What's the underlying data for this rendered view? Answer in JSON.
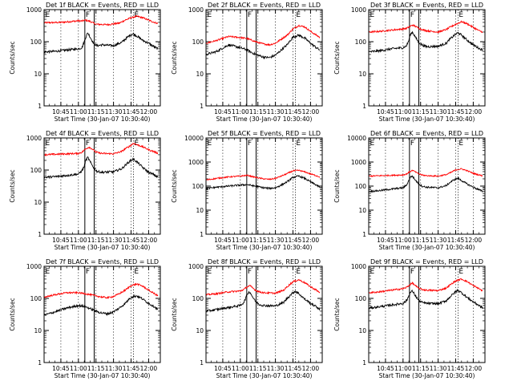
{
  "chart_data": {
    "type": "line",
    "ylabel": "Counts/sec",
    "xlabel": "Start Time (30-Jan-07 10:30:40)",
    "x_tick_labels": [
      "10:45",
      "11:00",
      "11:15",
      "11:30",
      "11:45",
      "12:00"
    ],
    "x_tick_minutes": [
      45,
      60,
      75,
      90,
      105,
      120
    ],
    "x_range_minutes": [
      30.67,
      130
    ],
    "y_scale": "log",
    "colors": {
      "events": "#000000",
      "lld": "#ff0000"
    },
    "panels": [
      {
        "title": "Det 1f BLACK = Events, RED = LLD",
        "ylim": [
          1,
          1000
        ],
        "y_tick_labels": [
          "1",
          "10",
          "100",
          "1000"
        ],
        "markers": [
          {
            "label": "E",
            "x": 31,
            "line": "none"
          },
          {
            "label": "F",
            "x": 65.5,
            "line": "solid"
          },
          {
            "label": "",
            "x": 73.5,
            "line": "solid"
          },
          {
            "label": "E",
            "x": 107,
            "line": "dotted"
          }
        ],
        "lld": {
          "x": [
            31,
            45,
            55,
            60,
            63,
            66,
            70,
            75,
            85,
            95,
            100,
            105,
            110,
            115,
            120,
            125,
            128
          ],
          "y": [
            390,
            400,
            430,
            450,
            440,
            470,
            430,
            350,
            340,
            380,
            470,
            560,
            620,
            560,
            470,
            400,
            370
          ]
        },
        "events": {
          "x": [
            31,
            40,
            50,
            60,
            63,
            65,
            66,
            68,
            70,
            73,
            76,
            80,
            90,
            97,
            100,
            104,
            107,
            110,
            115,
            120,
            125,
            128
          ],
          "y": [
            48,
            50,
            55,
            60,
            65,
            100,
            130,
            190,
            140,
            90,
            75,
            80,
            75,
            95,
            120,
            160,
            175,
            150,
            110,
            90,
            68,
            60
          ]
        }
      },
      {
        "title": "Det 2f BLACK = Events, RED = LLD",
        "ylim": [
          1,
          1000
        ],
        "y_tick_labels": [
          "1",
          "10",
          "100",
          "1000"
        ],
        "markers": [
          {
            "label": "E",
            "x": 31,
            "line": "none"
          },
          {
            "label": "F",
            "x": 65.5,
            "line": "solid"
          },
          {
            "label": "",
            "x": 73.5,
            "line": "solid"
          },
          {
            "label": "E",
            "x": 107,
            "line": "dotted"
          }
        ],
        "lld": {
          "x": [
            31,
            40,
            50,
            60,
            66,
            70,
            75,
            80,
            85,
            90,
            95,
            100,
            105,
            110,
            115,
            120,
            125,
            128
          ],
          "y": [
            90,
            110,
            145,
            135,
            125,
            110,
            95,
            85,
            80,
            90,
            120,
            160,
            250,
            320,
            290,
            210,
            160,
            135
          ]
        },
        "events": {
          "x": [
            31,
            40,
            50,
            60,
            66,
            70,
            75,
            80,
            85,
            90,
            95,
            100,
            105,
            110,
            115,
            120,
            125,
            128
          ],
          "y": [
            40,
            50,
            80,
            65,
            55,
            45,
            38,
            33,
            32,
            38,
            55,
            80,
            140,
            160,
            130,
            90,
            65,
            55
          ]
        }
      },
      {
        "title": "Det 3f BLACK = Events, RED = LLD",
        "ylim": [
          1,
          1000
        ],
        "y_tick_labels": [
          "1",
          "10",
          "100",
          "1000"
        ],
        "markers": [
          {
            "label": "E",
            "x": 31,
            "line": "none"
          },
          {
            "label": "F",
            "x": 65.5,
            "line": "solid"
          },
          {
            "label": "",
            "x": 73.5,
            "line": "solid"
          },
          {
            "label": "E",
            "x": 107,
            "line": "dotted"
          }
        ],
        "lld": {
          "x": [
            31,
            40,
            50,
            60,
            63,
            66,
            68,
            70,
            73,
            76,
            80,
            90,
            97,
            100,
            105,
            110,
            115,
            120,
            125,
            128
          ],
          "y": [
            200,
            210,
            230,
            250,
            260,
            300,
            330,
            310,
            270,
            240,
            220,
            200,
            240,
            280,
            350,
            420,
            360,
            280,
            220,
            200
          ]
        },
        "events": {
          "x": [
            31,
            40,
            50,
            60,
            63,
            65,
            66,
            68,
            70,
            73,
            76,
            80,
            90,
            97,
            100,
            104,
            107,
            110,
            115,
            120,
            125,
            128
          ],
          "y": [
            48,
            52,
            60,
            65,
            75,
            110,
            160,
            200,
            150,
            100,
            80,
            70,
            72,
            90,
            120,
            160,
            190,
            160,
            110,
            80,
            62,
            55
          ]
        }
      },
      {
        "title": "Det 4f BLACK = Events, RED = LLD",
        "ylim": [
          1,
          1000
        ],
        "y_tick_labels": [
          "1",
          "10",
          "100",
          "1000"
        ],
        "markers": [
          {
            "label": "E",
            "x": 31,
            "line": "none"
          },
          {
            "label": "F",
            "x": 65.5,
            "line": "solid"
          },
          {
            "label": "",
            "x": 73.5,
            "line": "solid"
          },
          {
            "label": "E",
            "x": 107,
            "line": "dotted"
          }
        ],
        "lld": {
          "x": [
            31,
            40,
            50,
            60,
            63,
            66,
            69,
            72,
            75,
            80,
            90,
            97,
            100,
            104,
            107,
            110,
            115,
            120,
            125,
            128
          ],
          "y": [
            300,
            310,
            320,
            330,
            360,
            450,
            520,
            450,
            360,
            330,
            320,
            380,
            460,
            560,
            680,
            620,
            530,
            430,
            370,
            330
          ]
        },
        "events": {
          "x": [
            31,
            40,
            50,
            60,
            63,
            65,
            66,
            68,
            70,
            73,
            76,
            80,
            90,
            97,
            100,
            104,
            107,
            110,
            115,
            120,
            125,
            128
          ],
          "y": [
            60,
            62,
            68,
            75,
            95,
            130,
            190,
            250,
            180,
            120,
            90,
            85,
            88,
            110,
            140,
            190,
            220,
            180,
            120,
            85,
            70,
            60
          ]
        }
      },
      {
        "title": "Det 5f BLACK = Events, RED = LLD",
        "ylim": [
          1,
          10000
        ],
        "y_tick_labels": [
          "1",
          "10",
          "100",
          "1000",
          "10000"
        ],
        "markers": [
          {
            "label": "E",
            "x": 31,
            "line": "none"
          },
          {
            "label": "F",
            "x": 65.5,
            "line": "solid"
          },
          {
            "label": "",
            "x": 73.5,
            "line": "solid"
          },
          {
            "label": "E",
            "x": 107,
            "line": "dotted"
          }
        ],
        "lld": {
          "x": [
            31,
            40,
            50,
            60,
            66,
            70,
            75,
            80,
            85,
            90,
            95,
            100,
            105,
            110,
            115,
            120,
            125,
            128
          ],
          "y": [
            180,
            210,
            240,
            260,
            280,
            250,
            220,
            200,
            190,
            210,
            260,
            330,
            430,
            450,
            390,
            320,
            270,
            240
          ]
        },
        "events": {
          "x": [
            31,
            40,
            50,
            60,
            66,
            70,
            75,
            80,
            85,
            90,
            95,
            100,
            105,
            110,
            115,
            120,
            125,
            128
          ],
          "y": [
            80,
            90,
            100,
            110,
            115,
            105,
            95,
            85,
            80,
            85,
            110,
            150,
            230,
            260,
            210,
            150,
            110,
            90
          ]
        }
      },
      {
        "title": "Det 6f BLACK = Events, RED = LLD",
        "ylim": [
          1,
          10000
        ],
        "y_tick_labels": [
          "1",
          "10",
          "100",
          "1000",
          "10000"
        ],
        "markers": [
          {
            "label": "E",
            "x": 31,
            "line": "none"
          },
          {
            "label": "F",
            "x": 65.5,
            "line": "solid"
          },
          {
            "label": "",
            "x": 73.5,
            "line": "solid"
          },
          {
            "label": "E",
            "x": 107,
            "line": "dotted"
          }
        ],
        "lld": {
          "x": [
            31,
            40,
            50,
            60,
            63,
            66,
            68,
            70,
            73,
            76,
            80,
            90,
            97,
            100,
            105,
            110,
            115,
            120,
            125,
            128
          ],
          "y": [
            260,
            270,
            280,
            290,
            320,
            400,
            450,
            400,
            330,
            290,
            270,
            260,
            300,
            350,
            470,
            520,
            430,
            340,
            290,
            270
          ]
        },
        "events": {
          "x": [
            31,
            40,
            50,
            60,
            63,
            65,
            66,
            68,
            70,
            73,
            76,
            80,
            90,
            97,
            100,
            104,
            107,
            110,
            115,
            120,
            125,
            128
          ],
          "y": [
            60,
            65,
            75,
            85,
            110,
            170,
            230,
            260,
            190,
            130,
            100,
            90,
            85,
            105,
            140,
            190,
            210,
            170,
            120,
            90,
            70,
            60
          ]
        }
      },
      {
        "title": "Det 7f BLACK = Events, RED = LLD",
        "ylim": [
          1,
          1000
        ],
        "y_tick_labels": [
          "1",
          "10",
          "100",
          "1000"
        ],
        "markers": [
          {
            "label": "E",
            "x": 31,
            "line": "none"
          },
          {
            "label": "F",
            "x": 65.5,
            "line": "solid"
          },
          {
            "label": "",
            "x": 73.5,
            "line": "solid"
          },
          {
            "label": "E",
            "x": 107,
            "line": "dotted"
          }
        ],
        "lld": {
          "x": [
            31,
            40,
            50,
            60,
            66,
            70,
            75,
            80,
            85,
            90,
            95,
            100,
            105,
            110,
            115,
            120,
            125,
            128
          ],
          "y": [
            110,
            130,
            150,
            150,
            140,
            130,
            120,
            110,
            105,
            115,
            140,
            180,
            250,
            280,
            240,
            180,
            140,
            120
          ]
        },
        "events": {
          "x": [
            31,
            40,
            50,
            60,
            66,
            70,
            75,
            80,
            85,
            90,
            95,
            100,
            105,
            110,
            115,
            120,
            125,
            128
          ],
          "y": [
            30,
            38,
            50,
            60,
            55,
            48,
            40,
            35,
            33,
            38,
            50,
            70,
            110,
            120,
            95,
            70,
            55,
            45
          ]
        }
      },
      {
        "title": "Det 8f BLACK = Events, RED = LLD",
        "ylim": [
          1,
          1000
        ],
        "y_tick_labels": [
          "1",
          "10",
          "100",
          "1000"
        ],
        "markers": [
          {
            "label": "E",
            "x": 31,
            "line": "none"
          },
          {
            "label": "F",
            "x": 65.5,
            "line": "solid"
          },
          {
            "label": "",
            "x": 73.5,
            "line": "solid"
          },
          {
            "label": "E",
            "x": 107,
            "line": "dotted"
          }
        ],
        "lld": {
          "x": [
            31,
            40,
            50,
            60,
            63,
            66,
            68,
            70,
            73,
            76,
            80,
            90,
            97,
            100,
            105,
            110,
            115,
            120,
            125,
            128
          ],
          "y": [
            130,
            140,
            160,
            170,
            190,
            230,
            250,
            220,
            180,
            160,
            150,
            145,
            180,
            230,
            330,
            380,
            310,
            230,
            180,
            150
          ]
        },
        "events": {
          "x": [
            31,
            40,
            50,
            60,
            63,
            65,
            66,
            68,
            70,
            73,
            76,
            80,
            90,
            97,
            100,
            104,
            107,
            110,
            115,
            120,
            125,
            128
          ],
          "y": [
            40,
            45,
            52,
            60,
            75,
            110,
            140,
            160,
            120,
            80,
            65,
            60,
            58,
            75,
            100,
            140,
            170,
            140,
            95,
            70,
            55,
            45
          ]
        }
      },
      {
        "title": "Det 9f BLACK = Events, RED = LLD",
        "ylim": [
          1,
          1000
        ],
        "y_tick_labels": [
          "1",
          "10",
          "100",
          "1000"
        ],
        "markers": [
          {
            "label": "E",
            "x": 31,
            "line": "none"
          },
          {
            "label": "F",
            "x": 65.5,
            "line": "solid"
          },
          {
            "label": "",
            "x": 73.5,
            "line": "solid"
          },
          {
            "label": "E",
            "x": 107,
            "line": "dotted"
          }
        ],
        "lld": {
          "x": [
            31,
            40,
            50,
            60,
            63,
            66,
            68,
            70,
            73,
            76,
            80,
            90,
            97,
            100,
            105,
            110,
            115,
            120,
            125,
            128
          ],
          "y": [
            150,
            160,
            180,
            200,
            220,
            270,
            300,
            260,
            210,
            190,
            180,
            175,
            210,
            260,
            350,
            400,
            330,
            250,
            200,
            170
          ]
        },
        "events": {
          "x": [
            31,
            40,
            50,
            60,
            63,
            65,
            66,
            68,
            70,
            73,
            76,
            80,
            90,
            97,
            100,
            104,
            107,
            110,
            115,
            120,
            125,
            128
          ],
          "y": [
            50,
            55,
            62,
            70,
            85,
            120,
            150,
            170,
            130,
            90,
            75,
            70,
            68,
            85,
            110,
            150,
            180,
            150,
            105,
            78,
            60,
            50
          ]
        }
      }
    ]
  }
}
